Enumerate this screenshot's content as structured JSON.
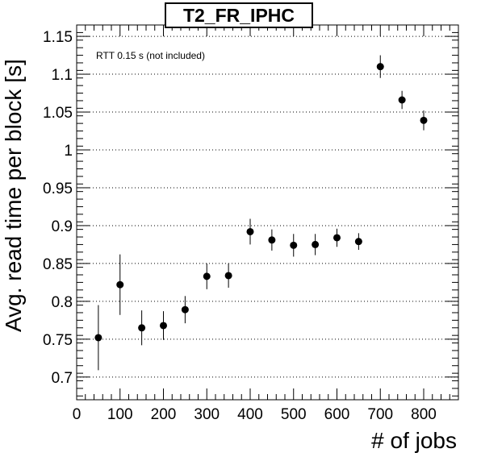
{
  "chart_data": {
    "type": "scatter",
    "title": "T2_FR_IPHC",
    "annotation": "RTT 0.15 s (not included)",
    "xlabel": "# of jobs",
    "ylabel": "Avg. read time per block [s]",
    "xlim": [
      0,
      880
    ],
    "ylim": [
      0.67,
      1.165
    ],
    "x_ticks": [
      0,
      100,
      200,
      300,
      400,
      500,
      600,
      700,
      800
    ],
    "x_tick_labels": [
      "0",
      "100",
      "200",
      "300",
      "400",
      "500",
      "600",
      "700",
      "800"
    ],
    "y_ticks": [
      0.7,
      0.75,
      0.8,
      0.85,
      0.9,
      0.95,
      1.0,
      1.05,
      1.1,
      1.15
    ],
    "y_tick_labels": [
      "0.7",
      "0.75",
      "0.8",
      "0.85",
      "0.9",
      "0.95",
      "1",
      "1.05",
      "1.1",
      "1.15"
    ],
    "grid": "horizontal dotted",
    "marker_color": "#000000",
    "points": [
      {
        "x": 50,
        "y": 0.752,
        "err": 0.043
      },
      {
        "x": 100,
        "y": 0.822,
        "err": 0.04
      },
      {
        "x": 150,
        "y": 0.765,
        "err": 0.023
      },
      {
        "x": 200,
        "y": 0.768,
        "err": 0.019
      },
      {
        "x": 250,
        "y": 0.789,
        "err": 0.018
      },
      {
        "x": 300,
        "y": 0.833,
        "err": 0.017
      },
      {
        "x": 350,
        "y": 0.834,
        "err": 0.016
      },
      {
        "x": 400,
        "y": 0.892,
        "err": 0.017
      },
      {
        "x": 450,
        "y": 0.881,
        "err": 0.014
      },
      {
        "x": 500,
        "y": 0.874,
        "err": 0.015
      },
      {
        "x": 550,
        "y": 0.875,
        "err": 0.014
      },
      {
        "x": 600,
        "y": 0.884,
        "err": 0.012
      },
      {
        "x": 650,
        "y": 0.879,
        "err": 0.011
      },
      {
        "x": 700,
        "y": 1.11,
        "err": 0.015
      },
      {
        "x": 750,
        "y": 1.066,
        "err": 0.012
      },
      {
        "x": 800,
        "y": 1.039,
        "err": 0.013
      }
    ]
  }
}
